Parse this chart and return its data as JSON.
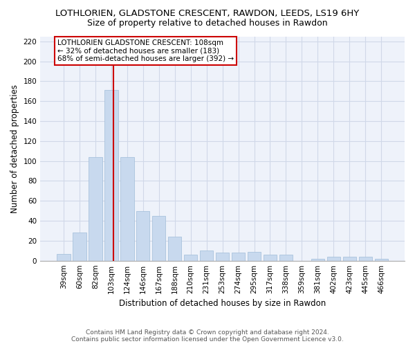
{
  "title": "LOTHLORIEN, GLADSTONE CRESCENT, RAWDON, LEEDS, LS19 6HY",
  "subtitle": "Size of property relative to detached houses in Rawdon",
  "xlabel": "Distribution of detached houses by size in Rawdon",
  "ylabel": "Number of detached properties",
  "categories": [
    "39sqm",
    "60sqm",
    "82sqm",
    "103sqm",
    "124sqm",
    "146sqm",
    "167sqm",
    "188sqm",
    "210sqm",
    "231sqm",
    "253sqm",
    "274sqm",
    "295sqm",
    "317sqm",
    "338sqm",
    "359sqm",
    "381sqm",
    "402sqm",
    "423sqm",
    "445sqm",
    "466sqm"
  ],
  "values": [
    7,
    28,
    104,
    171,
    104,
    50,
    45,
    24,
    6,
    10,
    8,
    8,
    9,
    6,
    6,
    0,
    2,
    4,
    4,
    4,
    2
  ],
  "bar_color": "#c8d9ee",
  "bar_edge_color": "#a0bcd8",
  "red_line_x": 3.15,
  "red_line_label": "LOTHLORIEN GLADSTONE CRESCENT: 108sqm",
  "annotation_line1": "← 32% of detached houses are smaller (183)",
  "annotation_line2": "68% of semi-detached houses are larger (392) →",
  "box_color": "#cc0000",
  "ylim": [
    0,
    225
  ],
  "yticks": [
    0,
    20,
    40,
    60,
    80,
    100,
    120,
    140,
    160,
    180,
    200,
    220
  ],
  "background_color": "#eef2fa",
  "grid_color": "#d0d8e8",
  "footer_line1": "Contains HM Land Registry data © Crown copyright and database right 2024.",
  "footer_line2": "Contains public sector information licensed under the Open Government Licence v3.0.",
  "title_fontsize": 9.5,
  "subtitle_fontsize": 9,
  "axis_label_fontsize": 8.5,
  "tick_fontsize": 7.5,
  "annotation_fontsize": 7.5,
  "footer_fontsize": 6.5
}
